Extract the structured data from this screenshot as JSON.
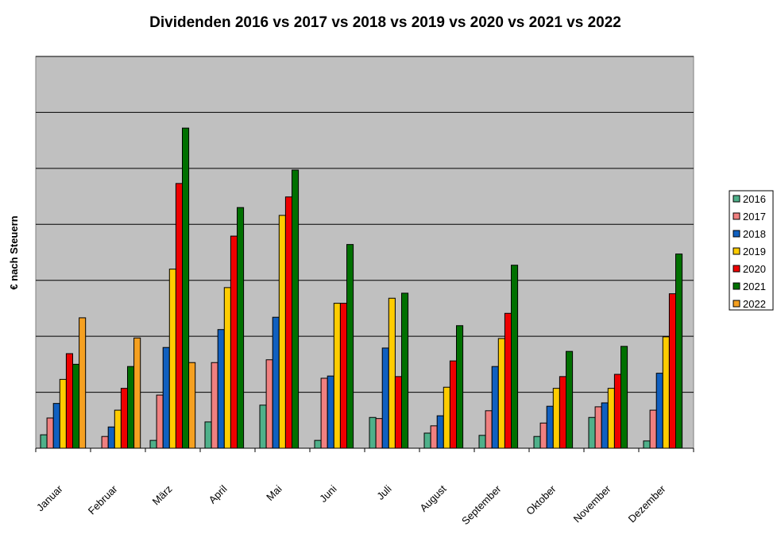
{
  "chart_data": {
    "type": "bar",
    "title": "Dividenden 2016 vs 2017 vs 2018 vs 2019 vs 2020 vs 2021 vs 2022",
    "xlabel": "",
    "ylabel": "€ nach Steuern",
    "ylim": [
      0,
      7
    ],
    "y_tick_labels_shown": false,
    "grid": true,
    "legend_position": "right",
    "plot_background": "#c0c0c0",
    "categories": [
      "Januar",
      "Februar",
      "März",
      "April",
      "Mai",
      "Juni",
      "Juli",
      "August",
      "September",
      "Oktober",
      "November",
      "Dezember"
    ],
    "series": [
      {
        "name": "2016",
        "color": "#4fb08a",
        "values": [
          0.24,
          0,
          0.14,
          0.47,
          0.77,
          0.14,
          0.55,
          0.27,
          0.23,
          0.21,
          0.55,
          0.13
        ]
      },
      {
        "name": "2017",
        "color": "#f08080",
        "values": [
          0.54,
          0.21,
          0.95,
          1.53,
          1.58,
          1.25,
          0.53,
          0.4,
          0.67,
          0.45,
          0.74,
          0.68
        ]
      },
      {
        "name": "2018",
        "color": "#1060c0",
        "values": [
          0.8,
          0.38,
          1.8,
          2.12,
          2.34,
          1.29,
          1.79,
          0.58,
          1.46,
          0.75,
          0.81,
          1.34
        ]
      },
      {
        "name": "2019",
        "color": "#ffcc00",
        "values": [
          1.23,
          0.68,
          3.2,
          2.87,
          4.16,
          2.59,
          2.68,
          1.09,
          1.96,
          1.07,
          1.07,
          1.99
        ]
      },
      {
        "name": "2020",
        "color": "#ee0000",
        "values": [
          1.69,
          1.07,
          4.73,
          3.79,
          4.49,
          2.59,
          1.28,
          1.56,
          2.41,
          1.28,
          1.32,
          2.76
        ]
      },
      {
        "name": "2021",
        "color": "#007000",
        "values": [
          1.5,
          1.46,
          5.72,
          4.3,
          4.97,
          3.64,
          2.77,
          2.19,
          3.27,
          1.73,
          1.82,
          3.47
        ]
      },
      {
        "name": "2022",
        "color": "#f5a020",
        "values": [
          2.33,
          1.97,
          1.53,
          null,
          null,
          null,
          null,
          null,
          null,
          null,
          null,
          null
        ]
      }
    ]
  }
}
